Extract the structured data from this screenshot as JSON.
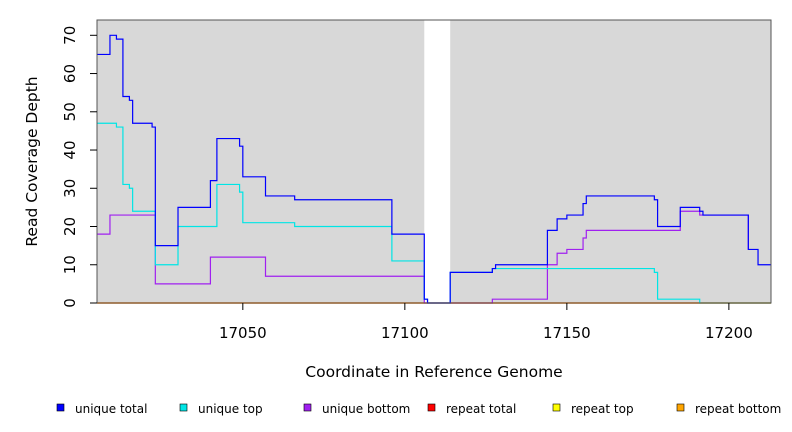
{
  "chart_data": {
    "type": "line",
    "title": "",
    "xlabel": "Coordinate in Reference Genome",
    "ylabel": "Read Coverage Depth",
    "xlim": [
      17005,
      17213
    ],
    "ylim": [
      0,
      74
    ],
    "grid": false,
    "background": "#d8d8d8",
    "gap": [
      17106,
      17114
    ],
    "x_ticks": [
      17050,
      17100,
      17150,
      17200
    ],
    "x_tick_labels": [
      "17050",
      "17100",
      "17150",
      "17200"
    ],
    "y_ticks": [
      0,
      10,
      20,
      30,
      40,
      50,
      60,
      70
    ],
    "y_tick_labels": [
      "0",
      "10",
      "20",
      "30",
      "40",
      "50",
      "60",
      "70"
    ],
    "legend_position": "bottom",
    "series": [
      {
        "name": "unique total",
        "color": "#0000ff",
        "points": [
          [
            17005,
            65
          ],
          [
            17009,
            65
          ],
          [
            17009,
            70
          ],
          [
            17011,
            70
          ],
          [
            17011,
            69
          ],
          [
            17013,
            69
          ],
          [
            17013,
            54
          ],
          [
            17015,
            54
          ],
          [
            17015,
            53
          ],
          [
            17016,
            53
          ],
          [
            17016,
            47
          ],
          [
            17022,
            47
          ],
          [
            17022,
            46
          ],
          [
            17023,
            46
          ],
          [
            17023,
            15
          ],
          [
            17030,
            15
          ],
          [
            17030,
            25
          ],
          [
            17040,
            25
          ],
          [
            17040,
            32
          ],
          [
            17042,
            32
          ],
          [
            17042,
            43
          ],
          [
            17049,
            43
          ],
          [
            17049,
            41
          ],
          [
            17050,
            41
          ],
          [
            17050,
            33
          ],
          [
            17057,
            33
          ],
          [
            17057,
            28
          ],
          [
            17066,
            28
          ],
          [
            17066,
            27
          ],
          [
            17096,
            27
          ],
          [
            17096,
            18
          ],
          [
            17106,
            18
          ],
          [
            17106,
            1
          ],
          [
            17107,
            1
          ],
          [
            17107,
            0
          ],
          [
            17114,
            0
          ],
          [
            17114,
            8
          ],
          [
            17127,
            8
          ],
          [
            17127,
            9
          ],
          [
            17128,
            9
          ],
          [
            17128,
            10
          ],
          [
            17144,
            10
          ],
          [
            17144,
            19
          ],
          [
            17147,
            19
          ],
          [
            17147,
            22
          ],
          [
            17150,
            22
          ],
          [
            17150,
            23
          ],
          [
            17155,
            23
          ],
          [
            17155,
            26
          ],
          [
            17156,
            26
          ],
          [
            17156,
            28
          ],
          [
            17177,
            28
          ],
          [
            17177,
            27
          ],
          [
            17178,
            27
          ],
          [
            17178,
            20
          ],
          [
            17185,
            20
          ],
          [
            17185,
            25
          ],
          [
            17191,
            25
          ],
          [
            17191,
            24
          ],
          [
            17192,
            24
          ],
          [
            17192,
            23
          ],
          [
            17206,
            23
          ],
          [
            17206,
            14
          ],
          [
            17209,
            14
          ],
          [
            17209,
            10
          ],
          [
            17213,
            10
          ]
        ]
      },
      {
        "name": "unique top",
        "color": "#00e5e5",
        "points": [
          [
            17005,
            47
          ],
          [
            17011,
            47
          ],
          [
            17011,
            46
          ],
          [
            17013,
            46
          ],
          [
            17013,
            31
          ],
          [
            17015,
            31
          ],
          [
            17015,
            30
          ],
          [
            17016,
            30
          ],
          [
            17016,
            24
          ],
          [
            17023,
            24
          ],
          [
            17023,
            10
          ],
          [
            17030,
            10
          ],
          [
            17030,
            20
          ],
          [
            17042,
            20
          ],
          [
            17042,
            31
          ],
          [
            17049,
            31
          ],
          [
            17049,
            29
          ],
          [
            17050,
            29
          ],
          [
            17050,
            21
          ],
          [
            17066,
            21
          ],
          [
            17066,
            20
          ],
          [
            17096,
            20
          ],
          [
            17096,
            11
          ],
          [
            17106,
            11
          ],
          [
            17106,
            1
          ],
          [
            17107,
            1
          ],
          [
            17107,
            0
          ],
          [
            17114,
            0
          ],
          [
            17114,
            8
          ],
          [
            17127,
            8
          ],
          [
            17127,
            9
          ],
          [
            17177,
            9
          ],
          [
            17177,
            8
          ],
          [
            17178,
            8
          ],
          [
            17178,
            1
          ],
          [
            17191,
            1
          ],
          [
            17191,
            0
          ],
          [
            17213,
            0
          ]
        ]
      },
      {
        "name": "unique bottom",
        "color": "#a020f0",
        "points": [
          [
            17005,
            18
          ],
          [
            17009,
            18
          ],
          [
            17009,
            23
          ],
          [
            17023,
            23
          ],
          [
            17023,
            5
          ],
          [
            17040,
            5
          ],
          [
            17040,
            12
          ],
          [
            17057,
            12
          ],
          [
            17057,
            7
          ],
          [
            17106,
            7
          ],
          [
            17106,
            0
          ],
          [
            17127,
            0
          ],
          [
            17127,
            1
          ],
          [
            17144,
            1
          ],
          [
            17144,
            10
          ],
          [
            17147,
            10
          ],
          [
            17147,
            13
          ],
          [
            17150,
            13
          ],
          [
            17150,
            14
          ],
          [
            17155,
            14
          ],
          [
            17155,
            17
          ],
          [
            17156,
            17
          ],
          [
            17156,
            19
          ],
          [
            17185,
            19
          ],
          [
            17185,
            24
          ],
          [
            17191,
            24
          ],
          [
            17191,
            23
          ],
          [
            17206,
            23
          ],
          [
            17206,
            14
          ]
        ]
      },
      {
        "name": "repeat total",
        "color": "#ff0000",
        "points": [
          [
            17005,
            0
          ],
          [
            17213,
            0
          ]
        ]
      },
      {
        "name": "repeat top",
        "color": "#ffff00",
        "points": [
          [
            17005,
            0
          ],
          [
            17213,
            0
          ]
        ]
      },
      {
        "name": "repeat bottom",
        "color": "#ffa500",
        "points": [
          [
            17005,
            0
          ],
          [
            17213,
            0
          ]
        ]
      }
    ]
  }
}
